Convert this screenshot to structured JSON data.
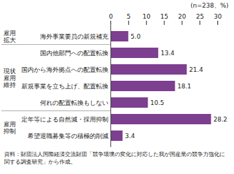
{
  "chart_data": {
    "type": "bar",
    "orientation": "horizontal",
    "subtitle": "(n=238、%)",
    "caption": "資料：財団法人国際経済交流財団「競争環境の変化に対応した我が国産業の競争力強化に関する調査研究」から作成。",
    "categories": [
      "海外事業要員の新規補充",
      "国内他部門への配置転換",
      "国内から海外拠点への配置転換",
      "新規事業を立ち上げ、配置転換",
      "何れの配置転換もしない",
      "定年等による自然減・採用抑制",
      "希望退職募集等の積極的削減"
    ],
    "groups": [
      "雇用拡大",
      "現状雇用維持",
      "現状雇用維持",
      "現状雇用維持",
      "現状雇用維持",
      "雇用抑制",
      "雇用抑制"
    ],
    "values": [
      5.0,
      13.4,
      21.4,
      18.1,
      10.5,
      28.2,
      3.4
    ],
    "value_labels": [
      "5.0",
      "13.4",
      "21.4",
      "18.1",
      "10.5",
      "28.2",
      "3.4"
    ],
    "data_labels": true,
    "color": "#7d3f8f",
    "xlim": [
      0,
      30
    ],
    "xticks": [
      0,
      5,
      10,
      15,
      20,
      25,
      30
    ],
    "grid": false
  }
}
